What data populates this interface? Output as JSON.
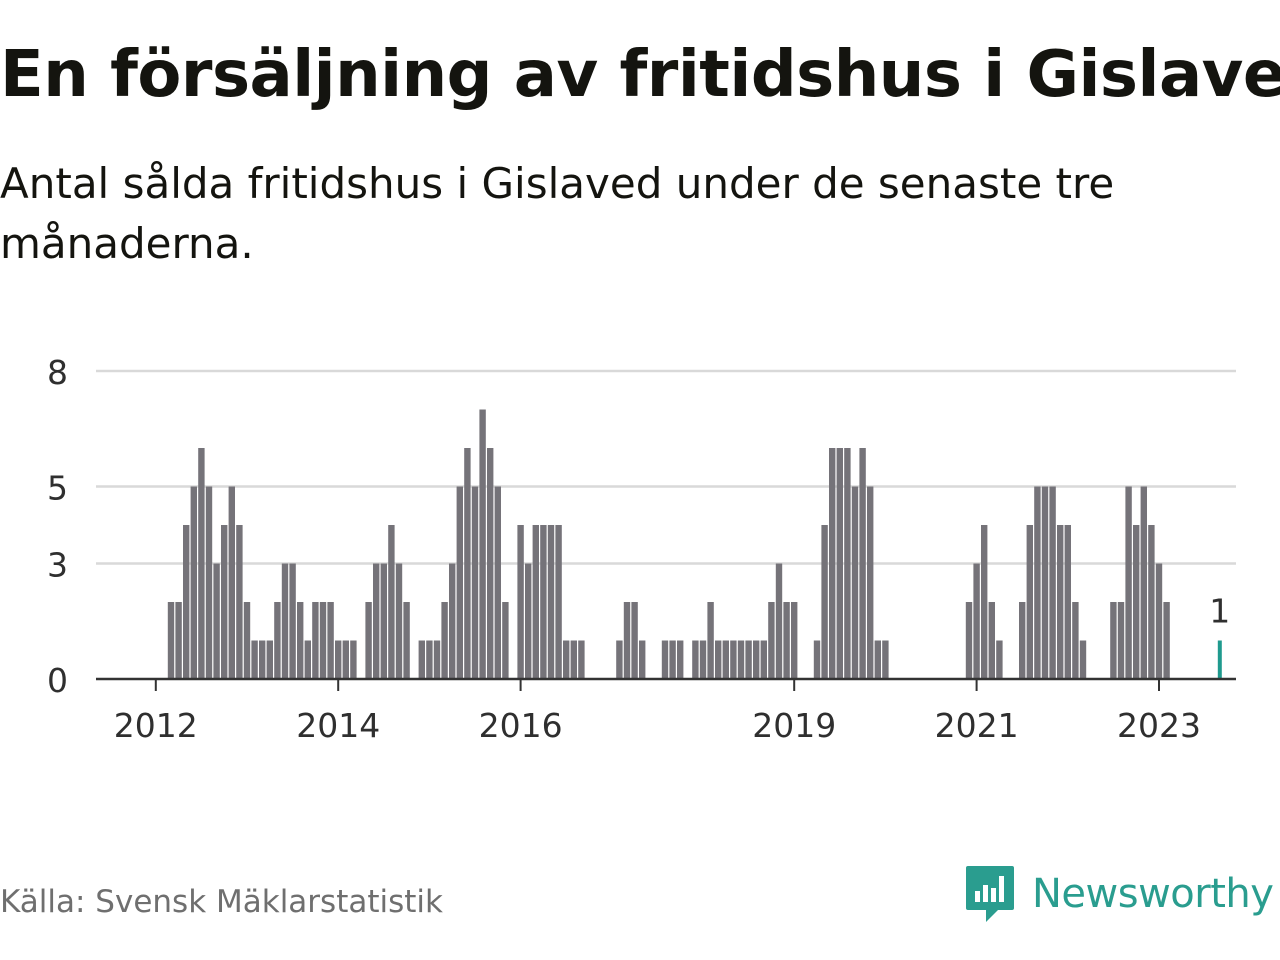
{
  "title": "En försäljning av fritidshus i Gislaved",
  "subtitle": "Antal sålda fritidshus i Gislaved under de senaste tre månaderna.",
  "source": "Källa: Svensk Mäklarstatistik",
  "brand": {
    "name": "Newsworthy",
    "color": "#2a9d8f",
    "icon": "newsworthy-logo-icon"
  },
  "chart_data": {
    "type": "bar",
    "ylim": [
      0,
      9
    ],
    "yticks": [
      0,
      3,
      5,
      8
    ],
    "xticks": [
      "2012",
      "2014",
      "2016",
      "2019",
      "2021",
      "2023"
    ],
    "grid": true,
    "colors": {
      "bar": "#757379",
      "highlight": "#1f9a8e",
      "grid": "#d9d9d9",
      "axis": "#333333"
    },
    "highlight_label": "1",
    "start_month": "2012-01",
    "values": [
      0,
      0,
      2,
      2,
      4,
      5,
      6,
      5,
      3,
      4,
      5,
      4,
      2,
      1,
      1,
      1,
      2,
      3,
      3,
      2,
      1,
      2,
      2,
      2,
      1,
      1,
      1,
      0,
      2,
      3,
      3,
      4,
      3,
      2,
      0,
      1,
      1,
      1,
      2,
      3,
      5,
      6,
      5,
      7,
      6,
      5,
      2,
      0,
      4,
      3,
      4,
      4,
      4,
      4,
      1,
      1,
      1,
      0,
      0,
      0,
      0,
      1,
      2,
      2,
      1,
      0,
      0,
      1,
      1,
      1,
      0,
      1,
      1,
      2,
      1,
      1,
      1,
      1,
      1,
      1,
      1,
      2,
      3,
      2,
      2,
      0,
      0,
      1,
      4,
      6,
      6,
      6,
      5,
      6,
      5,
      1,
      1,
      0,
      0,
      0,
      0,
      0,
      0,
      0,
      0,
      0,
      0,
      2,
      3,
      4,
      2,
      1,
      0,
      0,
      2,
      4,
      5,
      5,
      5,
      4,
      4,
      2,
      1,
      0,
      0,
      0,
      2,
      2,
      5,
      4,
      5,
      4,
      3,
      2,
      0,
      0,
      0,
      0,
      0,
      0,
      1,
      0,
      0,
      0
    ]
  }
}
